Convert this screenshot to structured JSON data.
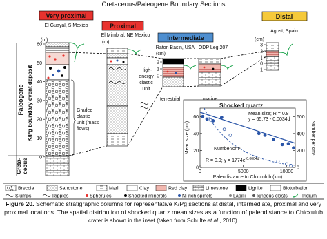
{
  "title": "Cretaceous/Paleogene Boundary Sections",
  "columns": [
    {
      "header": "Very proximal",
      "site": "El Guayal, S Mexico",
      "unit": "(m)",
      "scale": [
        60,
        50,
        40,
        30,
        20,
        10,
        0
      ]
    },
    {
      "header": "Proximal",
      "site": "El Mimbral, NE Mexico",
      "unit": "(m)"
    },
    {
      "header": "Intermediate",
      "sites": [
        "Raton Basin, USA",
        "ODP Leg 207"
      ],
      "unit": "(cm)",
      "scale": [
        2,
        1,
        0
      ],
      "labels": [
        "terrestrial",
        "marine"
      ]
    },
    {
      "header": "Distal",
      "site": "Agost, Spain",
      "unit": "(cm)",
      "scale": [
        3,
        2,
        1,
        0,
        -1
      ]
    }
  ],
  "annotations": {
    "graded": [
      "Graded",
      "clastic",
      "unit (mass",
      "flows)"
    ],
    "high_energy": [
      "High-",
      "energy",
      "clastic",
      "unit"
    ]
  },
  "periods": {
    "paleogene": "Paleogene",
    "event": "K/Pg boundary event deposit",
    "cretaceous": [
      "Creta-",
      "ceous"
    ]
  },
  "inset": {
    "title": "Shocked quartz",
    "fit_mean": [
      "Mean size; R = 0.8",
      "y = 65.73 - 0.0034d"
    ],
    "fit_number": [
      "Number/cm²",
      "R = 0.9; y = 1774e",
      "-0.0004d"
    ],
    "x_label": "Paleodistance to Chicxulub (km)",
    "y_label": "Mean size (μm)",
    "y2_label": "Number per cm²",
    "xlim": [
      0,
      11000
    ],
    "xticks": [
      0,
      5000,
      10000
    ],
    "ylim": [
      0,
      70
    ],
    "yticks": [
      0,
      20,
      40,
      60
    ],
    "y2lim": [
      0,
      700
    ],
    "y2ticks": [
      0,
      200,
      400,
      600
    ],
    "series": [
      {
        "name": "Mean size",
        "color": "#2a55a8",
        "x": [
          300,
          800,
          1500,
          2500,
          6800,
          7500,
          8500,
          9500,
          10200,
          10800
        ],
        "values": [
          60,
          57,
          55,
          59,
          40,
          38,
          33,
          27,
          28,
          23
        ]
      },
      {
        "name": "Number/cm²",
        "color": "#2a55a8",
        "axis": "y2",
        "x": [
          1200,
          2800,
          3500,
          9000,
          10000,
          10500
        ],
        "values": [
          560,
          450,
          380,
          70,
          40,
          20
        ]
      }
    ]
  },
  "legend": [
    [
      "Breccia",
      "Sandstone",
      "Marl",
      "Clay",
      "Red clay",
      "Limestone",
      "Lignite",
      "Bioturbation"
    ],
    [
      "Slumps",
      "Ripples",
      "Spherules",
      "Shocked minerals",
      "Ni-rich spinels",
      "Lapilli",
      "Igneous clasts",
      "Iridium"
    ]
  ],
  "caption": {
    "label": "Figure 20.",
    "lines": [
      "Schematic stratigraphic columns for representative K/Pg sections at distal, intermediate, proximal and very",
      "proximal locations. The spatial distribution of shocked quartz mean sizes as a function of paleodistance to  Chicxulub",
      "crater is shown in the inset (taken from Schulte "
    ],
    "italic": "et al.",
    "end": ", 2010)."
  }
}
